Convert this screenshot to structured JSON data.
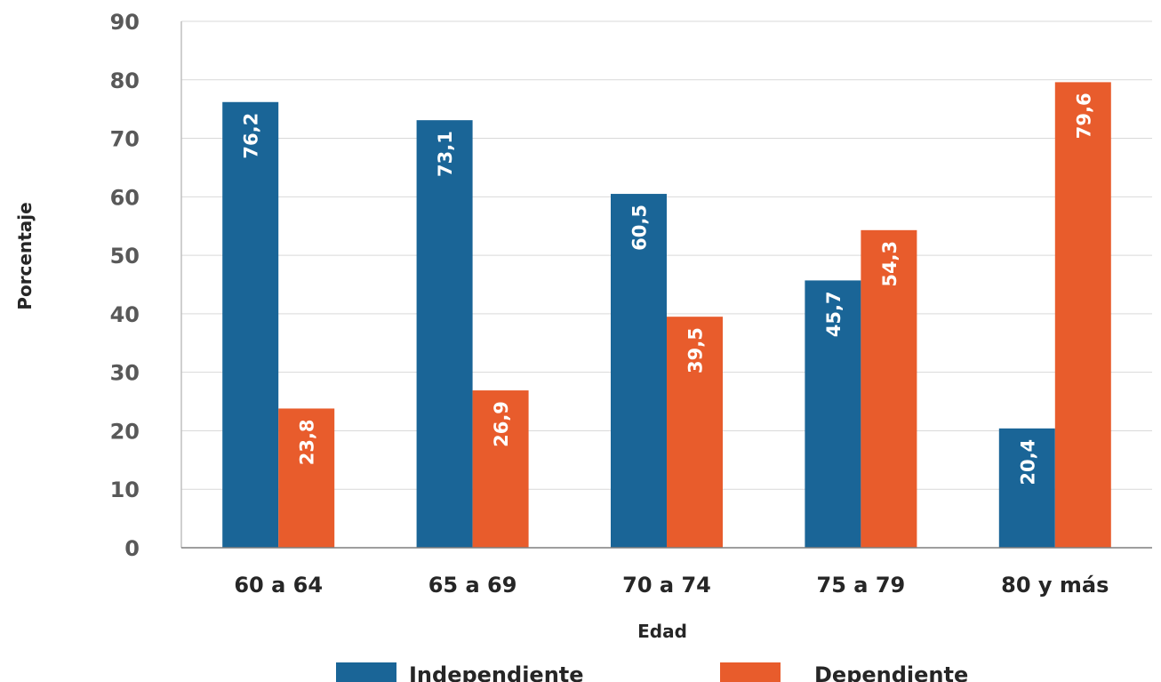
{
  "chart_data": {
    "type": "bar",
    "title": "",
    "xlabel": "Edad",
    "ylabel": "Porcentaje",
    "ylim": [
      0,
      90
    ],
    "yticks": [
      0,
      10,
      20,
      30,
      40,
      50,
      60,
      70,
      80,
      90
    ],
    "grid": true,
    "legend_position": "bottom",
    "categories": [
      "60 a 64",
      "65 a 69",
      "70 a 74",
      "75 a 79",
      "80 y más"
    ],
    "series": [
      {
        "name": "Independiente",
        "color": "#1a6597",
        "values": [
          76.2,
          73.1,
          60.5,
          45.7,
          20.4
        ],
        "labels": [
          "76,2",
          "73,1",
          "60,5",
          "45,7",
          "20,4"
        ]
      },
      {
        "name": "Dependiente",
        "color": "#e85c2c",
        "values": [
          23.8,
          26.9,
          39.5,
          54.3,
          79.6
        ],
        "labels": [
          "23,8",
          "26,9",
          "39,5",
          "54,3",
          "79,6"
        ]
      }
    ]
  }
}
